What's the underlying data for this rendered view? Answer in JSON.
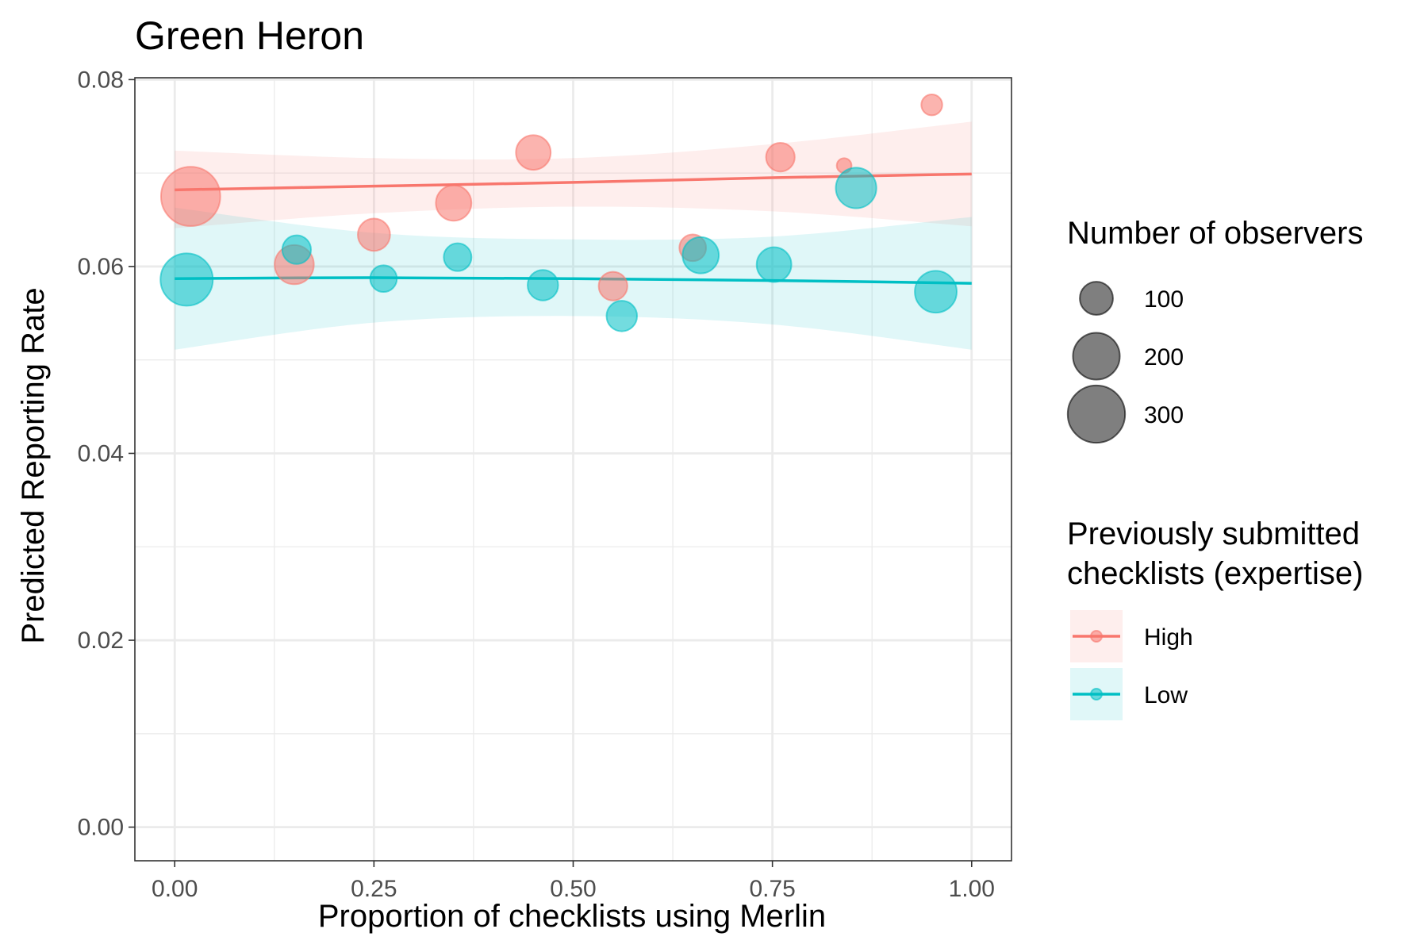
{
  "chart_data": {
    "type": "scatter",
    "title": "Green Heron",
    "xlabel": "Proportion of checklists using Merlin",
    "ylabel": "Predicted Reporting Rate",
    "xlim": [
      -0.05,
      1.05
    ],
    "ylim": [
      -0.0036,
      0.0802
    ],
    "x_ticks": [
      0.0,
      0.25,
      0.5,
      0.75,
      1.0
    ],
    "x_tick_labels": [
      "0.00",
      "0.25",
      "0.50",
      "0.75",
      "1.00"
    ],
    "y_ticks": [
      0.0,
      0.02,
      0.04,
      0.06,
      0.08
    ],
    "y_tick_labels": [
      "0.00",
      "0.02",
      "0.04",
      "0.06",
      "0.08"
    ],
    "grid": true,
    "legend_position": "right",
    "size_legend": {
      "title": "Number of observers",
      "entries": [
        {
          "label": "100",
          "value": 100
        },
        {
          "label": "200",
          "value": 200
        },
        {
          "label": "300",
          "value": 300
        }
      ]
    },
    "color_legend": {
      "title_lines": [
        "Previously submitted",
        "checklists (expertise)"
      ],
      "entries": [
        {
          "label": "High",
          "color": "#F8766D"
        },
        {
          "label": "Low",
          "color": "#00BFC4"
        }
      ]
    },
    "series": [
      {
        "name": "High",
        "color": "#F8766D",
        "points": [
          {
            "x": 0.02,
            "y": 0.0675,
            "observers": 320
          },
          {
            "x": 0.15,
            "y": 0.0602,
            "observers": 140
          },
          {
            "x": 0.25,
            "y": 0.0634,
            "observers": 95
          },
          {
            "x": 0.35,
            "y": 0.0668,
            "observers": 115
          },
          {
            "x": 0.45,
            "y": 0.0722,
            "observers": 110
          },
          {
            "x": 0.55,
            "y": 0.0579,
            "observers": 75
          },
          {
            "x": 0.65,
            "y": 0.062,
            "observers": 65
          },
          {
            "x": 0.76,
            "y": 0.0717,
            "observers": 75
          },
          {
            "x": 0.84,
            "y": 0.0708,
            "observers": 20
          },
          {
            "x": 0.95,
            "y": 0.0773,
            "observers": 40
          }
        ],
        "fit": [
          {
            "x": 0.0,
            "y": 0.0682,
            "lower": 0.0641,
            "upper": 0.0724
          },
          {
            "x": 0.25,
            "y": 0.0686,
            "lower": 0.0657,
            "upper": 0.0716
          },
          {
            "x": 0.5,
            "y": 0.069,
            "lower": 0.0664,
            "upper": 0.0716
          },
          {
            "x": 0.75,
            "y": 0.0695,
            "lower": 0.0659,
            "upper": 0.0731
          },
          {
            "x": 1.0,
            "y": 0.0699,
            "lower": 0.0643,
            "upper": 0.0755
          }
        ]
      },
      {
        "name": "Low",
        "color": "#00BFC4",
        "points": [
          {
            "x": 0.015,
            "y": 0.0586,
            "observers": 250
          },
          {
            "x": 0.153,
            "y": 0.0618,
            "observers": 75
          },
          {
            "x": 0.262,
            "y": 0.0587,
            "observers": 65
          },
          {
            "x": 0.355,
            "y": 0.061,
            "observers": 70
          },
          {
            "x": 0.462,
            "y": 0.058,
            "observers": 85
          },
          {
            "x": 0.561,
            "y": 0.0547,
            "observers": 85
          },
          {
            "x": 0.66,
            "y": 0.0612,
            "observers": 120
          },
          {
            "x": 0.752,
            "y": 0.0602,
            "observers": 110
          },
          {
            "x": 0.855,
            "y": 0.0684,
            "observers": 150
          },
          {
            "x": 0.955,
            "y": 0.0573,
            "observers": 160
          }
        ],
        "fit": [
          {
            "x": 0.0,
            "y": 0.0587,
            "lower": 0.0511,
            "upper": 0.0663
          },
          {
            "x": 0.25,
            "y": 0.0588,
            "lower": 0.054,
            "upper": 0.0636
          },
          {
            "x": 0.5,
            "y": 0.0587,
            "lower": 0.0547,
            "upper": 0.0629
          },
          {
            "x": 0.75,
            "y": 0.0585,
            "lower": 0.0538,
            "upper": 0.0632
          },
          {
            "x": 1.0,
            "y": 0.0582,
            "lower": 0.0511,
            "upper": 0.0653
          }
        ]
      }
    ]
  }
}
